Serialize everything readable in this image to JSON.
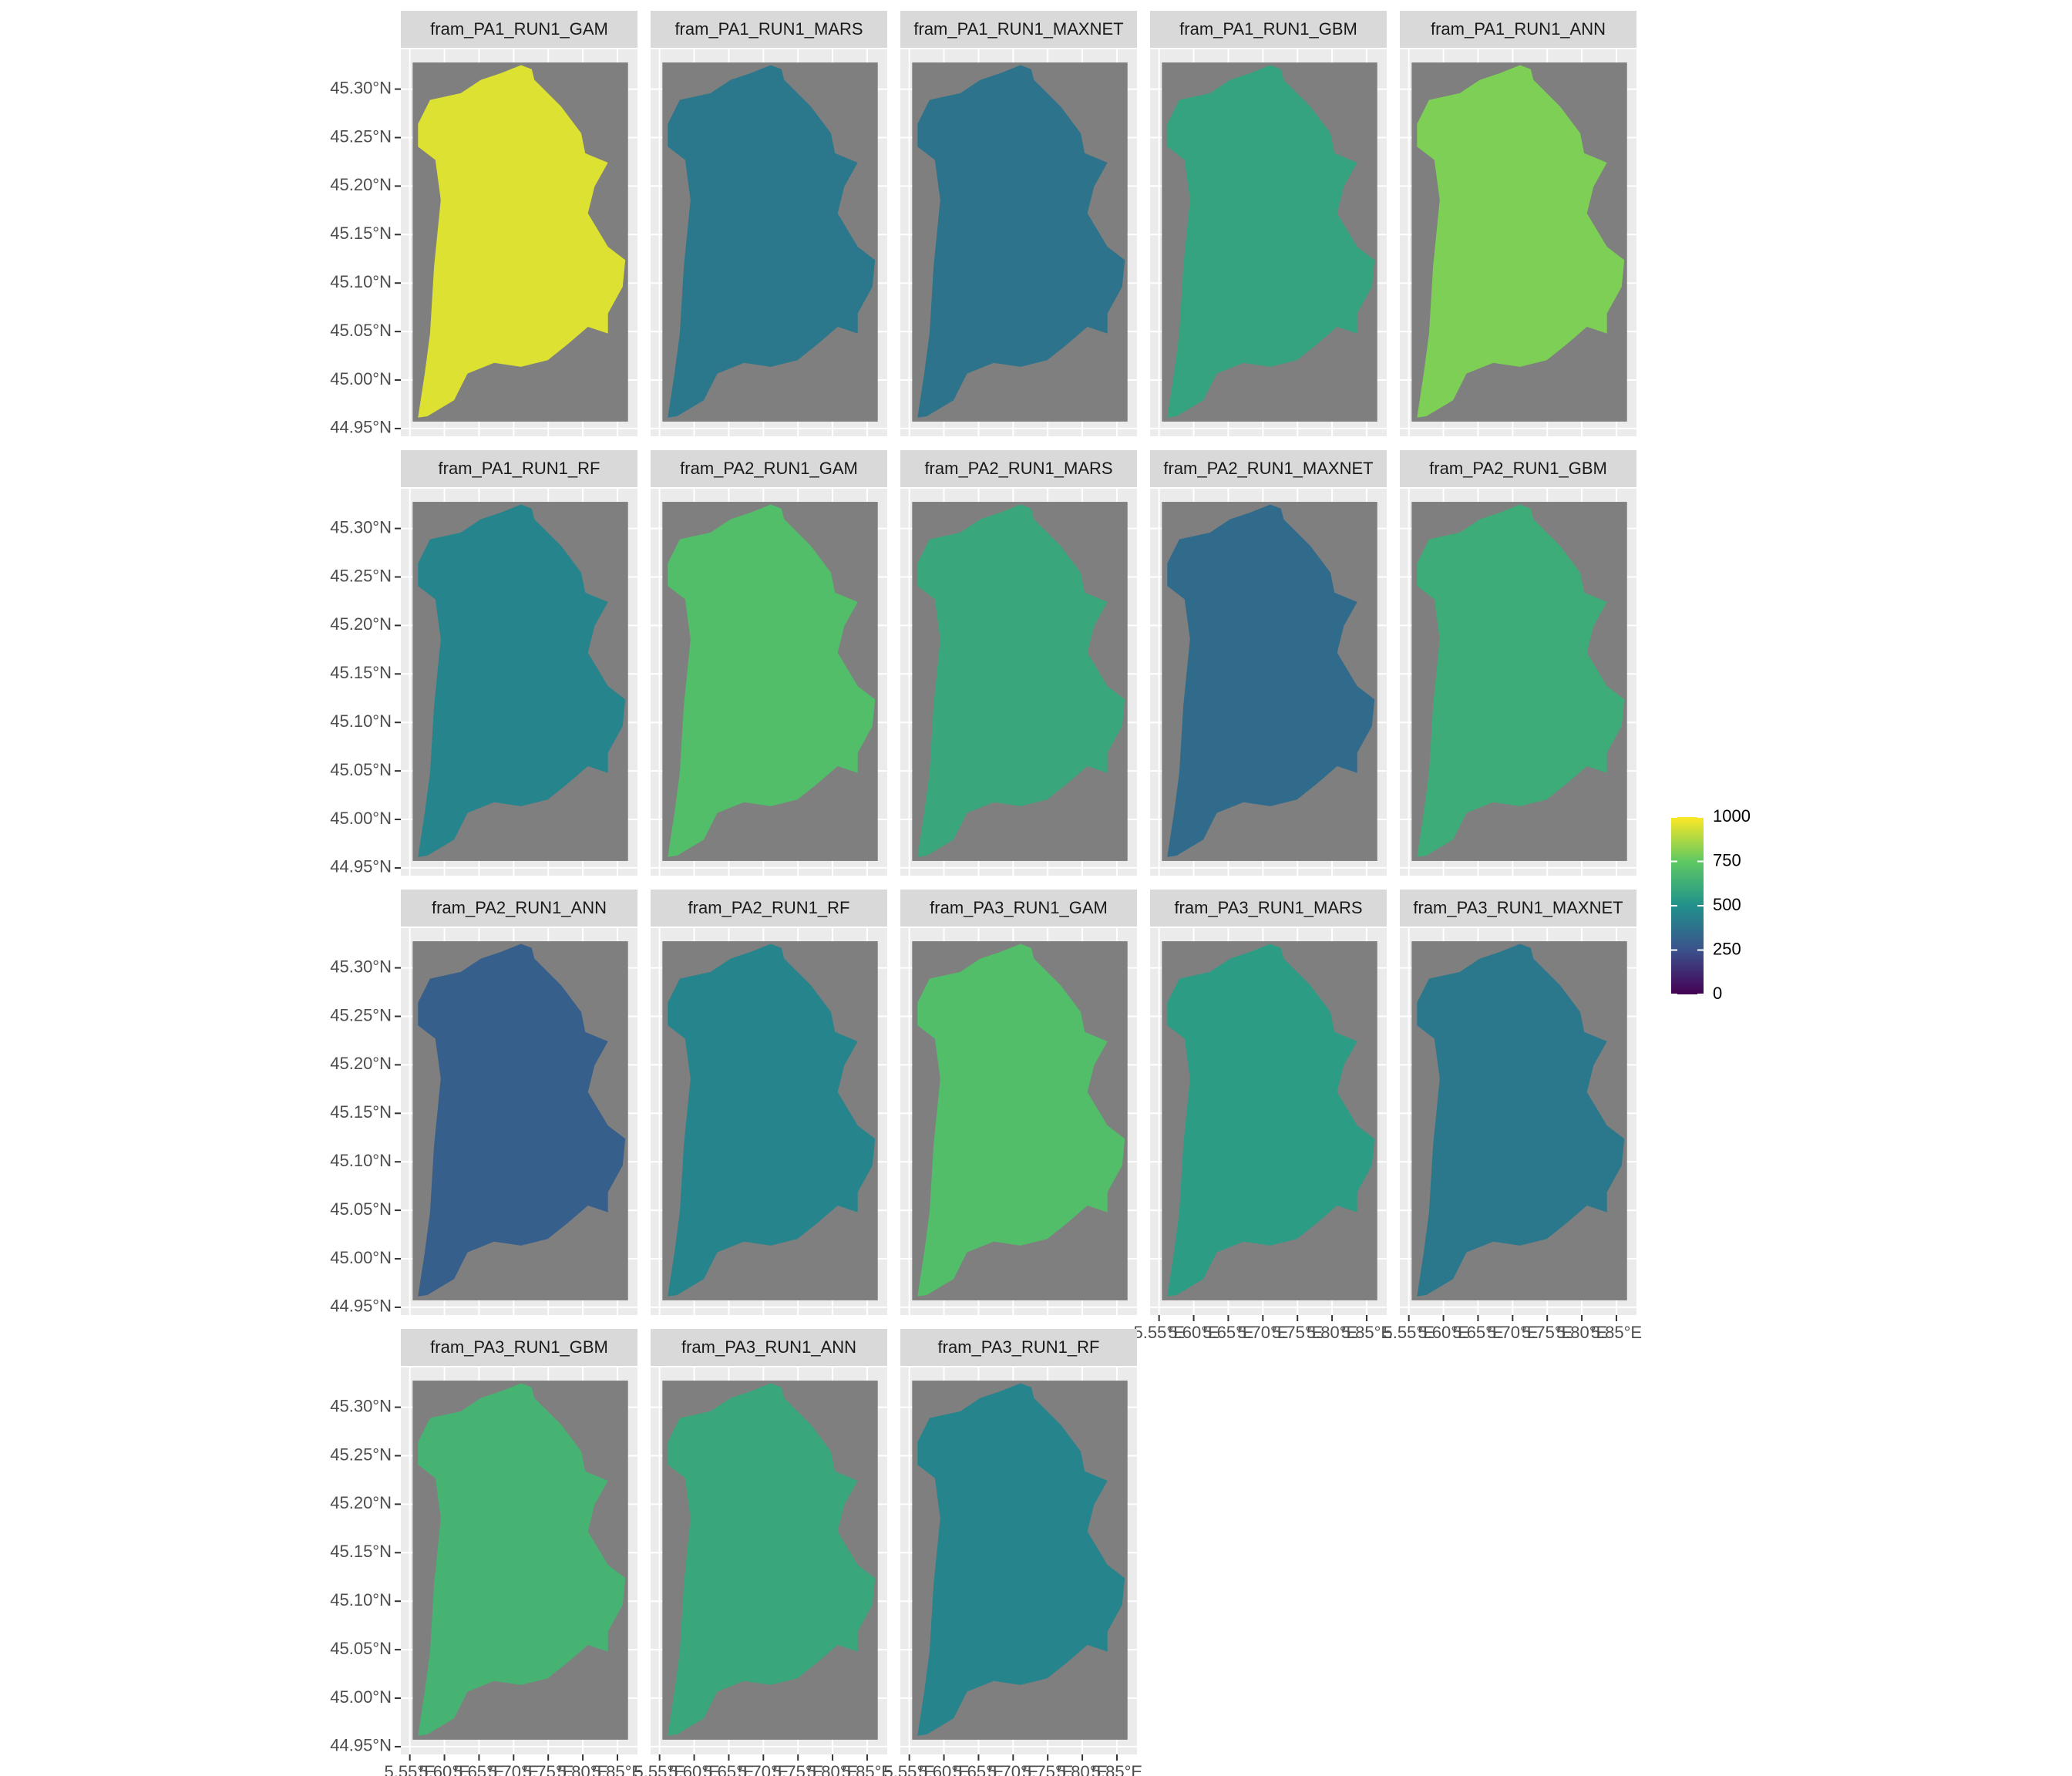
{
  "chart_data": {
    "type": "map",
    "panels": [
      {
        "title": "fram_PA1_RUN1_GAM",
        "value": 950
      },
      {
        "title": "fram_PA1_RUN1_MARS",
        "value": 400
      },
      {
        "title": "fram_PA1_RUN1_MAXNET",
        "value": 380
      },
      {
        "title": "fram_PA1_RUN1_GBM",
        "value": 580
      },
      {
        "title": "fram_PA1_RUN1_ANN",
        "value": 800
      },
      {
        "title": "fram_PA1_RUN1_RF",
        "value": 450
      },
      {
        "title": "fram_PA2_RUN1_GAM",
        "value": 700
      },
      {
        "title": "fram_PA2_RUN1_MARS",
        "value": 600
      },
      {
        "title": "fram_PA2_RUN1_MAXNET",
        "value": 350
      },
      {
        "title": "fram_PA2_RUN1_GBM",
        "value": 620
      },
      {
        "title": "fram_PA2_RUN1_ANN",
        "value": 300
      },
      {
        "title": "fram_PA2_RUN1_RF",
        "value": 450
      },
      {
        "title": "fram_PA3_RUN1_GAM",
        "value": 700
      },
      {
        "title": "fram_PA3_RUN1_MARS",
        "value": 550
      },
      {
        "title": "fram_PA3_RUN1_MAXNET",
        "value": 400
      },
      {
        "title": "fram_PA3_RUN1_GBM",
        "value": 650
      },
      {
        "title": "fram_PA3_RUN1_ANN",
        "value": 600
      },
      {
        "title": "fram_PA3_RUN1_RF",
        "value": 450
      }
    ],
    "ncol": 5,
    "xlim": [
      5.537,
      5.879
    ],
    "xticks": [
      {
        "value": 5.55,
        "label": "5.55°E"
      },
      {
        "value": 5.6,
        "label": "5.60°E"
      },
      {
        "value": 5.65,
        "label": "5.65°E"
      },
      {
        "value": 5.7,
        "label": "5.70°E"
      },
      {
        "value": 5.75,
        "label": "5.75°E"
      },
      {
        "value": 5.8,
        "label": "5.80°E"
      },
      {
        "value": 5.85,
        "label": "5.85°E"
      }
    ],
    "ylim": [
      44.942,
      45.341
    ],
    "yticks": [
      {
        "value": 44.95,
        "label": "44.95°N"
      },
      {
        "value": 45.0,
        "label": "45.00°N"
      },
      {
        "value": 45.05,
        "label": "45.05°N"
      },
      {
        "value": 45.1,
        "label": "45.10°N"
      },
      {
        "value": 45.15,
        "label": "45.15°N"
      },
      {
        "value": 45.2,
        "label": "45.20°N"
      },
      {
        "value": 45.25,
        "label": "45.25°N"
      },
      {
        "value": 45.3,
        "label": "45.30°N"
      }
    ],
    "grid": true,
    "raster_background": "#7f7f7f",
    "colorlim": [
      0,
      1000
    ],
    "colorticks": [
      0,
      250,
      500,
      750,
      1000
    ],
    "colorscale": [
      "#440154",
      "#3b528b",
      "#21918c",
      "#5ec962",
      "#fde725"
    ]
  }
}
